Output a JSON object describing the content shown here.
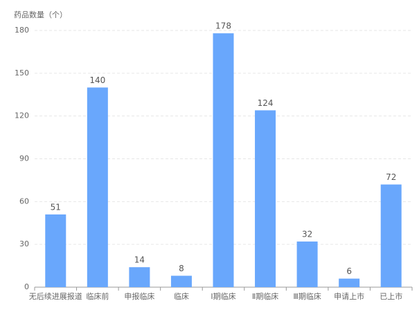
{
  "chart_data": {
    "type": "bar",
    "y_axis_label": "药品数量（个）",
    "categories": [
      "无后续进展报道",
      "临床前",
      "申报临床",
      "临床",
      "Ⅰ期临床",
      "Ⅱ期临床",
      "Ⅲ期临床",
      "申请上市",
      "已上市"
    ],
    "values": [
      51,
      140,
      14,
      8,
      178,
      124,
      32,
      6,
      72
    ],
    "color": "#69a7fc",
    "ylim": [
      0,
      180
    ],
    "yticks": [
      0,
      30,
      60,
      90,
      120,
      150,
      180
    ],
    "grid": true
  }
}
